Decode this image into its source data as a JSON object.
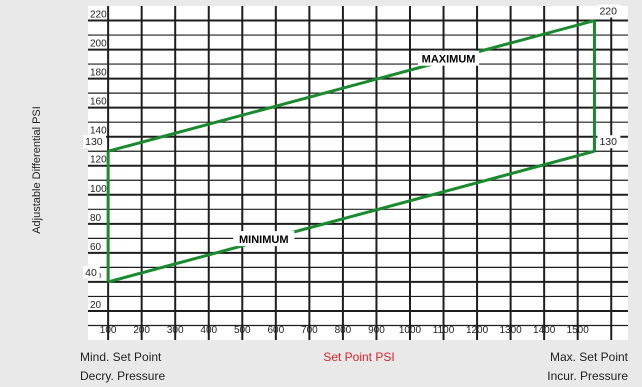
{
  "colors": {
    "line": "#1a8a2f",
    "accent_red": "#d9232a",
    "grid": "#1e1e1e"
  },
  "chart_data": {
    "type": "line",
    "ylabel": "Adjustable Differential PSI",
    "xlabel": "Set Point PSI",
    "y_ticks": [
      "20",
      "40",
      "60",
      "80",
      "100",
      "120",
      "140",
      "160",
      "180",
      "200",
      "220"
    ],
    "x_ticks": [
      "100",
      "200",
      "300",
      "400",
      "500",
      "600",
      "700",
      "800",
      "900",
      "1000",
      "1100",
      "1200",
      "1300",
      "1400",
      "1500"
    ],
    "xlim": [
      40,
      1650
    ],
    "ylim": [
      0,
      230
    ],
    "grid": true,
    "series": [
      {
        "name": "MAXIMUM",
        "x": [
          100,
          1550
        ],
        "y": [
          130,
          220
        ]
      },
      {
        "name": "MINIMUM",
        "x": [
          100,
          1550
        ],
        "y": [
          40,
          130
        ]
      }
    ],
    "verticals": [
      {
        "x": 100,
        "y": [
          40,
          130
        ]
      },
      {
        "x": 1550,
        "y": [
          130,
          220
        ]
      }
    ],
    "annotations": [
      {
        "text": "220",
        "x": 1550,
        "y": 220,
        "pos": "right"
      },
      {
        "text": "130",
        "x": 1550,
        "y": 130,
        "pos": "right"
      },
      {
        "text": "130",
        "x": 100,
        "y": 130,
        "pos": "left"
      },
      {
        "text": "40",
        "x": 100,
        "y": 40,
        "pos": "left"
      }
    ],
    "footer": {
      "left": [
        "Mind. Set Point",
        "Decry. Pressure"
      ],
      "center": "Set Point PSI",
      "right": [
        "Max. Set Point",
        "Incur. Pressure"
      ]
    }
  }
}
